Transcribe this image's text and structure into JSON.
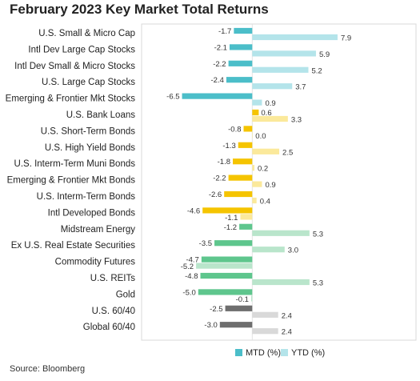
{
  "title": "February 2023 Key Market Total Returns",
  "source": "Source: Bloomberg",
  "chart_data": {
    "type": "bar",
    "orientation": "horizontal",
    "title": "February 2023 Key Market Total Returns",
    "categories": [
      "U.S. Small & Micro Cap",
      "Intl Dev Large Cap Stocks",
      "Intl Dev Small & Micro Stocks",
      "U.S. Large Cap Stocks",
      "Emerging & Frontier Mkt Stocks",
      "U.S. Bank Loans",
      "U.S. Short-Term Bonds",
      "U.S. High Yield Bonds",
      "U.S. Interm-Term Muni Bonds",
      "Emerging & Frontier Mkt Bonds",
      "U.S. Interm-Term Bonds",
      "Intl Developed Bonds",
      "Midstream Energy",
      "Ex U.S. Real Estate Securities",
      "Commodity Futures",
      "U.S. REITs",
      "Gold",
      "U.S. 60/40",
      "Global 60/40"
    ],
    "series": [
      {
        "name": "MTD (%)",
        "values": [
          -1.7,
          -2.1,
          -2.2,
          -2.4,
          -6.5,
          0.6,
          -0.8,
          -1.3,
          -1.8,
          -2.2,
          -2.6,
          -4.6,
          -1.2,
          -3.5,
          -4.7,
          -4.8,
          -5.0,
          -2.5,
          -3.0
        ]
      },
      {
        "name": "YTD (%)",
        "values": [
          7.9,
          5.9,
          5.2,
          3.7,
          0.9,
          3.3,
          0.0,
          2.5,
          0.2,
          0.9,
          0.4,
          -1.1,
          5.3,
          3.0,
          -5.2,
          5.3,
          -0.1,
          2.4,
          2.4
        ]
      }
    ],
    "value_labels": {
      "mtd": [
        "-1.7",
        "-2.1",
        "-2.2",
        "-2.4",
        "-6.5",
        "0.6",
        "-0.8",
        "-1.3",
        "-1.8",
        "-2.2",
        "-2.6",
        "-4.6",
        "-1.2",
        "-3.5",
        "-4.7",
        "-4.8",
        "-5.0",
        "-2.5",
        "-3.0"
      ],
      "ytd": [
        "7.9",
        "5.9",
        "5.2",
        "3.7",
        "0.9",
        "3.3",
        "0.0",
        "2.5",
        "0.2",
        "0.9",
        "0.4",
        "-1.1",
        "5.3",
        "3.0",
        "-5.2",
        "5.3",
        "-0.1",
        "2.4",
        "2.4"
      ]
    },
    "group_colors": [
      {
        "mtd": "#4bbec9",
        "ytd": "#b4e4ea",
        "rows": 5
      },
      {
        "mtd": "#f5c400",
        "ytd": "#fbe99b",
        "rows": 7
      },
      {
        "mtd": "#5ec68d",
        "ytd": "#b9e5cb",
        "rows": 5
      },
      {
        "mtd": "#6e6e6e",
        "ytd": "#d9d9d9",
        "rows": 2
      }
    ],
    "legend": {
      "position": "bottom-right",
      "items": [
        {
          "label": "MTD (%)",
          "color": "#4bbec9"
        },
        {
          "label": "YTD (%)",
          "color": "#b4e4ea"
        }
      ]
    },
    "xlim": [
      -6.8,
      8.6
    ],
    "grid": false
  }
}
